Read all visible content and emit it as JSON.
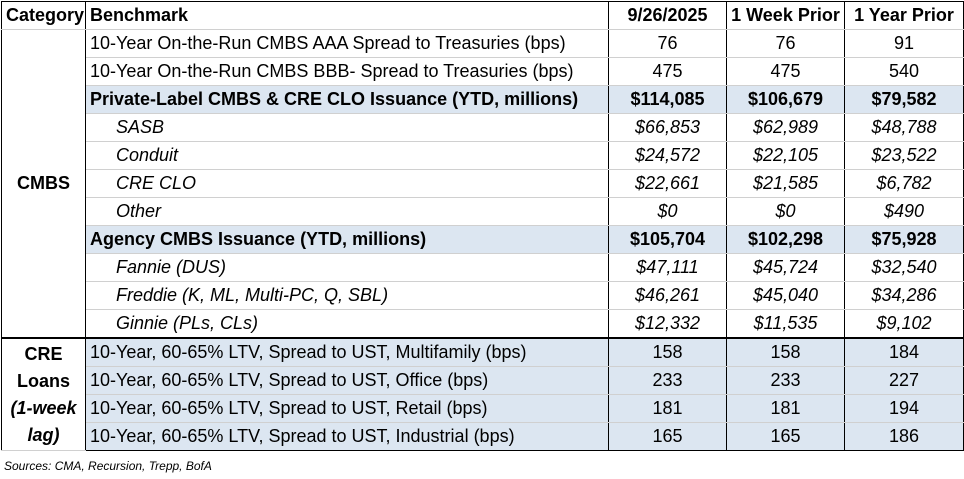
{
  "header": {
    "category": "Category",
    "benchmark": "Benchmark",
    "col1": "9/26/2025",
    "col2": "1 Week Prior",
    "col3": "1 Year Prior"
  },
  "cmbs_category": "CMBS",
  "cmbs_rows": [
    {
      "label": "10-Year On-the-Run CMBS AAA Spread to Treasuries (bps)",
      "v1": "76",
      "v2": "76",
      "v3": "91"
    },
    {
      "label": "10-Year On-the-Run CMBS BBB- Spread to Treasuries (bps)",
      "v1": "475",
      "v2": "475",
      "v3": "540"
    },
    {
      "label": "Private-Label CMBS & CRE CLO Issuance (YTD, millions)",
      "v1": "$114,085",
      "v2": "$106,679",
      "v3": "$79,582"
    },
    {
      "label": "SASB",
      "v1": "$66,853",
      "v2": "$62,989",
      "v3": "$48,788"
    },
    {
      "label": "Conduit",
      "v1": "$24,572",
      "v2": "$22,105",
      "v3": "$23,522"
    },
    {
      "label": "CRE CLO",
      "v1": "$22,661",
      "v2": "$21,585",
      "v3": "$6,782"
    },
    {
      "label": "Other",
      "v1": "$0",
      "v2": "$0",
      "v3": "$490"
    },
    {
      "label": "Agency CMBS Issuance (YTD, millions)",
      "v1": "$105,704",
      "v2": "$102,298",
      "v3": "$75,928"
    },
    {
      "label": "Fannie (DUS)",
      "v1": "$47,111",
      "v2": "$45,724",
      "v3": "$32,540"
    },
    {
      "label": "Freddie (K, ML, Multi-PC, Q, SBL)",
      "v1": "$46,261",
      "v2": "$45,040",
      "v3": "$34,286"
    },
    {
      "label": "Ginnie (PLs, CLs)",
      "v1": "$12,332",
      "v2": "$11,535",
      "v3": "$9,102"
    }
  ],
  "loans_category": {
    "line1": "CRE",
    "line2": "Loans",
    "line3": "(1-week",
    "line4": "lag)"
  },
  "loan_rows": [
    {
      "label": "10-Year, 60-65% LTV, Spread to UST, Multifamily (bps)",
      "v1": "158",
      "v2": "158",
      "v3": "184"
    },
    {
      "label": "10-Year, 60-65% LTV, Spread to UST, Office (bps)",
      "v1": "233",
      "v2": "233",
      "v3": "227"
    },
    {
      "label": "10-Year, 60-65% LTV, Spread to UST, Retail (bps)",
      "v1": "181",
      "v2": "181",
      "v3": "194"
    },
    {
      "label": "10-Year, 60-65% LTV, Spread to UST, Industrial (bps)",
      "v1": "165",
      "v2": "165",
      "v3": "186"
    }
  ],
  "source": "Sources: CMA, Recursion, Trepp, BofA",
  "colors": {
    "highlight": "#dce6f1",
    "border": "#000000"
  }
}
